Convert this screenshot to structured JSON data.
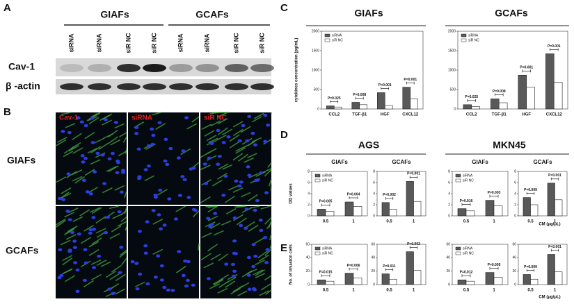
{
  "panels": {
    "A": {
      "label": "A",
      "groups": [
        "GIAFs",
        "GCAFs"
      ],
      "lanes": [
        "siRNA",
        "siRNA",
        "siR NC",
        "siR NC",
        "siRNA",
        "siRNA",
        "siR NC",
        "siR NC"
      ],
      "rows": [
        "Cav-1",
        "β -actin"
      ]
    },
    "B": {
      "label": "B",
      "columns": [
        "Cav-1",
        "siRNA",
        "siR NC"
      ],
      "rows": [
        "GIAFs",
        "GCAFs"
      ]
    },
    "C": {
      "label": "C"
    },
    "D": {
      "label": "D"
    },
    "E": {
      "label": "E"
    }
  },
  "chart_data": [
    {
      "type": "bar",
      "title": "GIAFs",
      "ylabel": "cytokines concentration (pg/mL)",
      "categories": [
        "CCL2",
        "TGF-β1",
        "HGF",
        "CXCL12"
      ],
      "series": [
        {
          "name": "siRNA",
          "color": "#595959",
          "values": [
            80,
            170,
            420,
            560
          ]
        },
        {
          "name": "siR NC",
          "color": "#ffffff",
          "values": [
            50,
            110,
            90,
            260
          ]
        }
      ],
      "annotations": [
        "P=0.025",
        "P=0.008",
        "P<0.001",
        "P=0.001"
      ],
      "ylim": [
        0,
        2000
      ],
      "yticks": [
        0,
        500,
        1000,
        1500,
        2000
      ],
      "legend": "upper left"
    },
    {
      "type": "bar",
      "title": "GCAFs",
      "categories": [
        "CCL2",
        "TGF-β1",
        "HGF",
        "CXCL12"
      ],
      "series": [
        {
          "name": "siRNA",
          "color": "#595959",
          "values": [
            110,
            260,
            870,
            1420
          ]
        },
        {
          "name": "siR NC",
          "color": "#ffffff",
          "values": [
            60,
            160,
            560,
            690
          ]
        }
      ],
      "annotations": [
        "P=0.025",
        "P=0.008",
        "P=0.001",
        "P=0.001"
      ],
      "ylim": [
        0,
        2000
      ],
      "yticks": [
        0,
        500,
        1000,
        1500,
        2000
      ],
      "legend": "upper left"
    },
    {
      "type": "bar",
      "title": "AGS",
      "groups": [
        "GIAFs",
        "GCAFs"
      ],
      "ylabel": "OD values",
      "categories": [
        "0.5",
        "1",
        "0.5",
        "1"
      ],
      "series": [
        {
          "name": "siRNA",
          "color": "#595959",
          "values": [
            1.2,
            2.5,
            2.4,
            6.2
          ]
        },
        {
          "name": "siR NC",
          "color": "#ffffff",
          "values": [
            0.8,
            1.7,
            1.2,
            2.6
          ]
        }
      ],
      "annotations": [
        "P=0.005",
        "P=0.004",
        "P=0.002",
        "P<0.001"
      ],
      "ylim": [
        0,
        8
      ],
      "yticks": [
        0,
        2,
        4,
        6,
        8
      ],
      "legend": "upper left"
    },
    {
      "type": "bar",
      "title": "MKN45",
      "groups": [
        "GIAFs",
        "GCAFs"
      ],
      "xlabel": "CM (μg/μL)",
      "categories": [
        "0.5",
        "1",
        "0.5",
        "1"
      ],
      "series": [
        {
          "name": "siRNA",
          "color": "#595959",
          "values": [
            1.3,
            2.8,
            3.3,
            5.9
          ]
        },
        {
          "name": "siR NC",
          "color": "#ffffff",
          "values": [
            0.9,
            1.8,
            2.0,
            2.9
          ]
        }
      ],
      "annotations": [
        "P=0.016",
        "P=0.003",
        "P=0.009",
        "P<0.001"
      ],
      "ylim": [
        0,
        8
      ],
      "yticks": [
        0,
        2,
        4,
        6,
        8
      ],
      "legend": "upper left"
    },
    {
      "type": "bar",
      "ylabel": "No. of invasion cells",
      "categories": [
        "0.5",
        "1",
        "0.5",
        "1"
      ],
      "series": [
        {
          "name": "siRNA",
          "color": "#595959",
          "values": [
            7,
            17,
            16,
            49
          ]
        },
        {
          "name": "siR NC",
          "color": "#ffffff",
          "values": [
            5,
            10,
            8,
            21
          ]
        }
      ],
      "annotations": [
        "P=0.015",
        "P=0.006",
        "P=0.011",
        "P=0.002"
      ],
      "ylim": [
        0,
        60
      ],
      "yticks": [
        0,
        20,
        40,
        60
      ],
      "legend": "upper left"
    },
    {
      "type": "bar",
      "xlabel": "CM (μg/μL)",
      "categories": [
        "0.5",
        "1",
        "0.5",
        "1"
      ],
      "series": [
        {
          "name": "siRNA",
          "color": "#595959",
          "values": [
            7,
            18,
            15,
            45
          ]
        },
        {
          "name": "siR NC",
          "color": "#ffffff",
          "values": [
            5,
            11,
            8,
            19
          ]
        }
      ],
      "annotations": [
        "P=0.012",
        "P=0.005",
        "P=0.009",
        "P<0.001"
      ],
      "ylim": [
        0,
        60
      ],
      "yticks": [
        0,
        20,
        40,
        60
      ],
      "legend": "upper left"
    }
  ]
}
